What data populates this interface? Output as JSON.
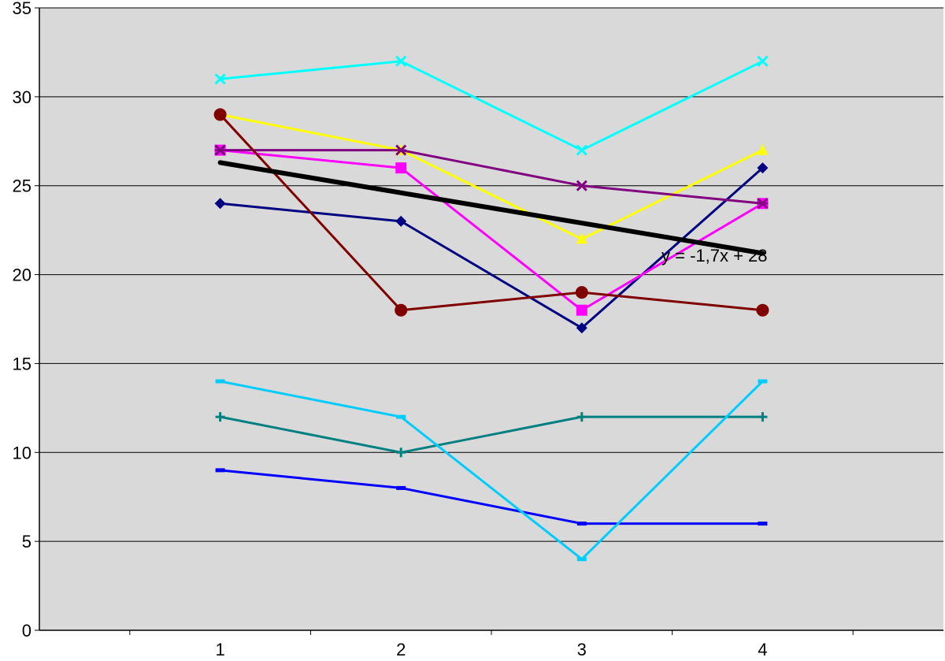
{
  "chart_data": {
    "type": "line",
    "x": [
      1,
      2,
      3,
      4
    ],
    "xlim": [
      0,
      5
    ],
    "ylim": [
      0,
      35
    ],
    "y_ticks": [
      0,
      5,
      10,
      15,
      20,
      25,
      30,
      35
    ],
    "x_ticks": [
      1,
      2,
      3,
      4
    ],
    "grid": "horizontal",
    "plot_background": "#d9d9d9",
    "series": [
      {
        "values": [
          24,
          23,
          17,
          26
        ],
        "color": "#000080",
        "marker": "diamond"
      },
      {
        "values": [
          27,
          26,
          18,
          24
        ],
        "color": "#ff00ff",
        "marker": "square"
      },
      {
        "values": [
          29,
          27,
          22,
          27
        ],
        "color": "#ffff00",
        "marker": "triangle"
      },
      {
        "values": [
          31,
          32,
          27,
          32
        ],
        "color": "#00ffff",
        "marker": "x"
      },
      {
        "values": [
          27,
          27,
          25,
          24
        ],
        "color": "#800080",
        "marker": "star"
      },
      {
        "values": [
          29,
          18,
          19,
          18
        ],
        "color": "#800000",
        "marker": "circle"
      },
      {
        "values": [
          12,
          10,
          12,
          12
        ],
        "color": "#008080",
        "marker": "plus"
      },
      {
        "values": [
          9,
          8,
          6,
          6
        ],
        "color": "#0000ff",
        "marker": "dash"
      },
      {
        "values": [
          14,
          12,
          4,
          14
        ],
        "color": "#00ccff",
        "marker": "dash"
      }
    ],
    "trendline": {
      "slope": -1.7,
      "intercept": 28,
      "x_range": [
        1,
        4
      ],
      "color": "#000000",
      "label": "y = -1,7x + 28"
    }
  }
}
